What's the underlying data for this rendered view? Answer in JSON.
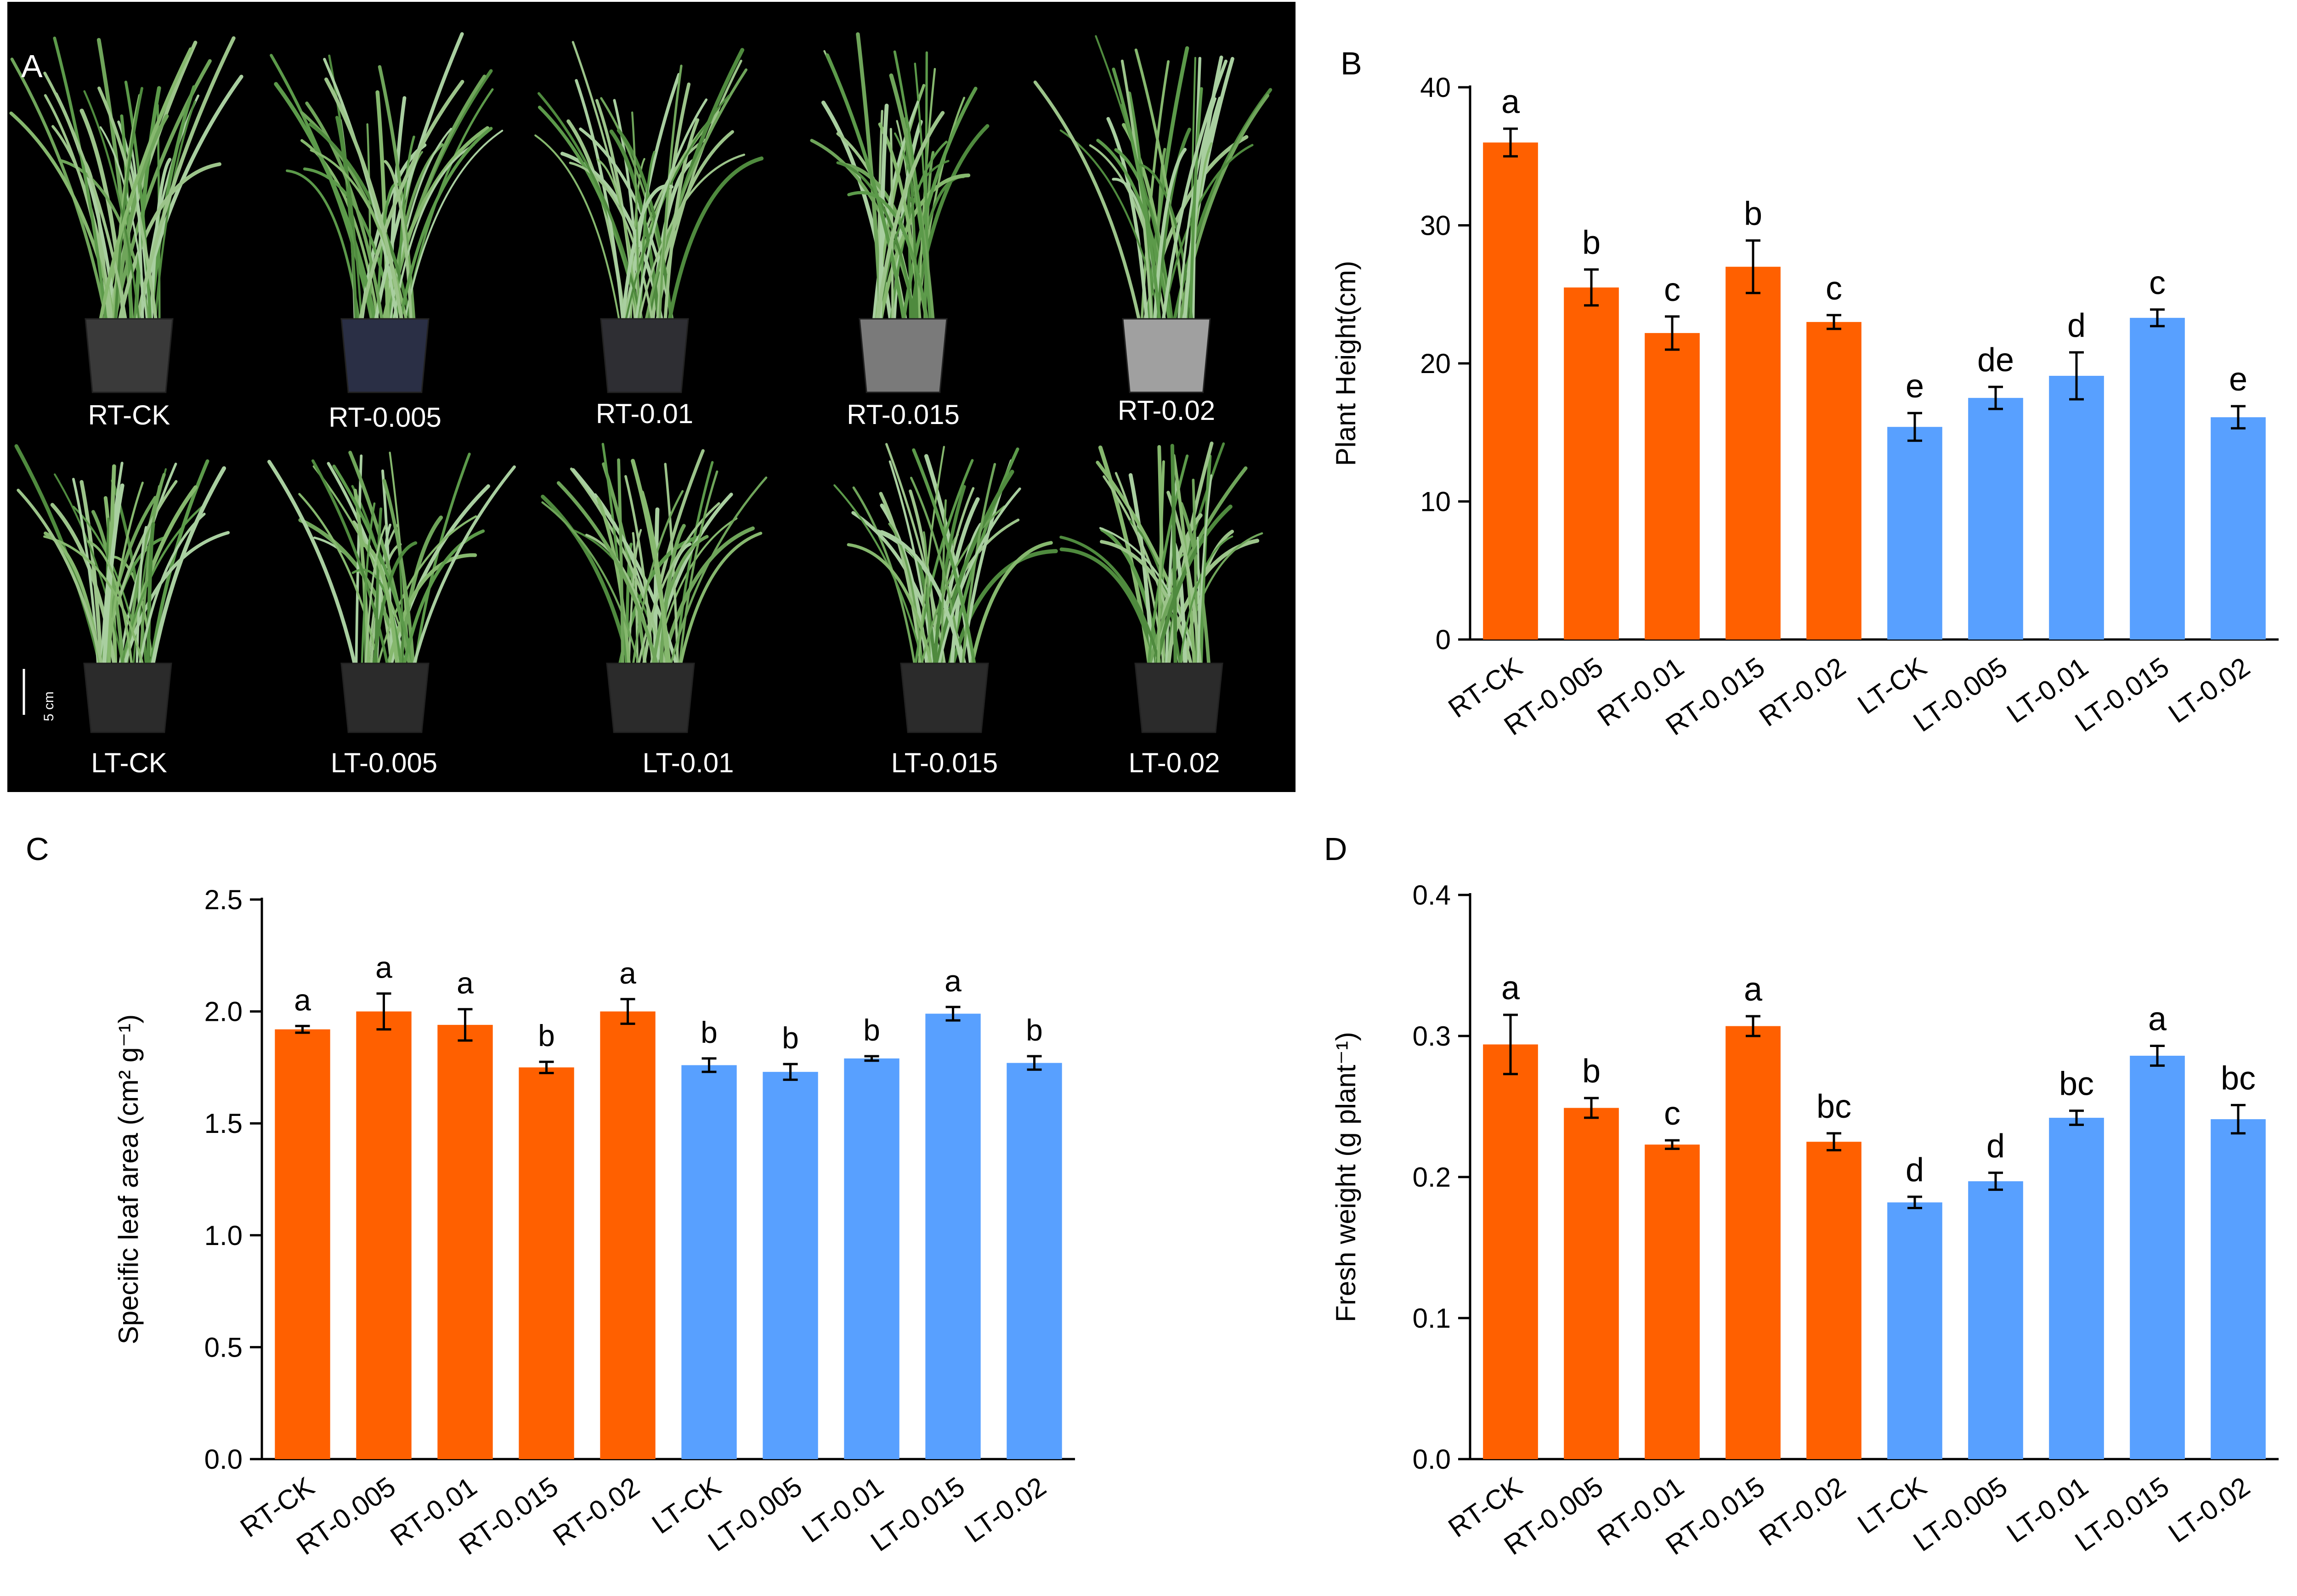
{
  "photo_panel": {
    "letter": "A",
    "scale_bar_label": "5 cm",
    "top_row_labels": [
      "RT-CK",
      "RT-0.005",
      "RT-0.01",
      "RT-0.015",
      "RT-0.02"
    ],
    "bottom_row_labels": [
      "LT-CK",
      "LT-0.005",
      "LT-0.01",
      "LT-0.015",
      "LT-0.02"
    ]
  },
  "colors": {
    "rt_bar": "#ff6000",
    "lt_bar": "#58a0ff",
    "axis": "#000000"
  },
  "chart_data": [
    {
      "panel": "B",
      "type": "bar",
      "ylabel": "Plant Height(cm)",
      "ylim": [
        0,
        40
      ],
      "yticks": [
        0,
        10,
        20,
        30,
        40
      ],
      "categories": [
        "RT-CK",
        "RT-0.005",
        "RT-0.01",
        "RT-0.015",
        "RT-0.02",
        "LT-CK",
        "LT-0.005",
        "LT-0.01",
        "LT-0.015",
        "LT-0.02"
      ],
      "values": [
        36.0,
        25.5,
        22.2,
        27.0,
        23.0,
        15.4,
        17.5,
        19.1,
        23.3,
        16.1
      ],
      "errors": [
        1.0,
        1.3,
        1.2,
        1.9,
        0.5,
        1.0,
        0.8,
        1.7,
        0.6,
        0.8
      ],
      "letters": [
        "a",
        "b",
        "c",
        "b",
        "c",
        "e",
        "de",
        "d",
        "c",
        "e"
      ],
      "groups": [
        "RT",
        "RT",
        "RT",
        "RT",
        "RT",
        "LT",
        "LT",
        "LT",
        "LT",
        "LT"
      ],
      "grid": false
    },
    {
      "panel": "C",
      "type": "bar",
      "ylabel": "Specific leaf area (cm² g⁻¹)",
      "ylim": [
        0,
        2.5
      ],
      "yticks": [
        "0.0",
        "0.5",
        "1.0",
        "1.5",
        "2.0",
        "2.5"
      ],
      "categories": [
        "RT-CK",
        "RT-0.005",
        "RT-0.01",
        "RT-0.015",
        "RT-0.02",
        "LT-CK",
        "LT-0.005",
        "LT-0.01",
        "LT-0.015",
        "LT-0.02"
      ],
      "values": [
        1.92,
        2.0,
        1.94,
        1.75,
        2.0,
        1.76,
        1.73,
        1.79,
        1.99,
        1.77
      ],
      "errors": [
        0.015,
        0.08,
        0.07,
        0.025,
        0.055,
        0.03,
        0.035,
        0.01,
        0.03,
        0.03
      ],
      "letters": [
        "a",
        "a",
        "a",
        "b",
        "a",
        "b",
        "b",
        "b",
        "a",
        "b"
      ],
      "groups": [
        "RT",
        "RT",
        "RT",
        "RT",
        "RT",
        "LT",
        "LT",
        "LT",
        "LT",
        "LT"
      ],
      "grid": false
    },
    {
      "panel": "D",
      "type": "bar",
      "ylabel": "Fresh weight (g plant⁻¹)",
      "ylim": [
        0,
        0.4
      ],
      "yticks": [
        "0.0",
        "0.1",
        "0.2",
        "0.3",
        "0.4"
      ],
      "categories": [
        "RT-CK",
        "RT-0.005",
        "RT-0.01",
        "RT-0.015",
        "RT-0.02",
        "LT-CK",
        "LT-0.005",
        "LT-0.01",
        "LT-0.015",
        "LT-0.02"
      ],
      "values": [
        0.294,
        0.249,
        0.223,
        0.307,
        0.225,
        0.182,
        0.197,
        0.242,
        0.286,
        0.241
      ],
      "errors": [
        0.021,
        0.007,
        0.003,
        0.007,
        0.006,
        0.004,
        0.006,
        0.005,
        0.007,
        0.01
      ],
      "letters": [
        "a",
        "b",
        "c",
        "a",
        "bc",
        "d",
        "d",
        "bc",
        "a",
        "bc"
      ],
      "groups": [
        "RT",
        "RT",
        "RT",
        "RT",
        "RT",
        "LT",
        "LT",
        "LT",
        "LT",
        "LT"
      ],
      "grid": false
    }
  ]
}
